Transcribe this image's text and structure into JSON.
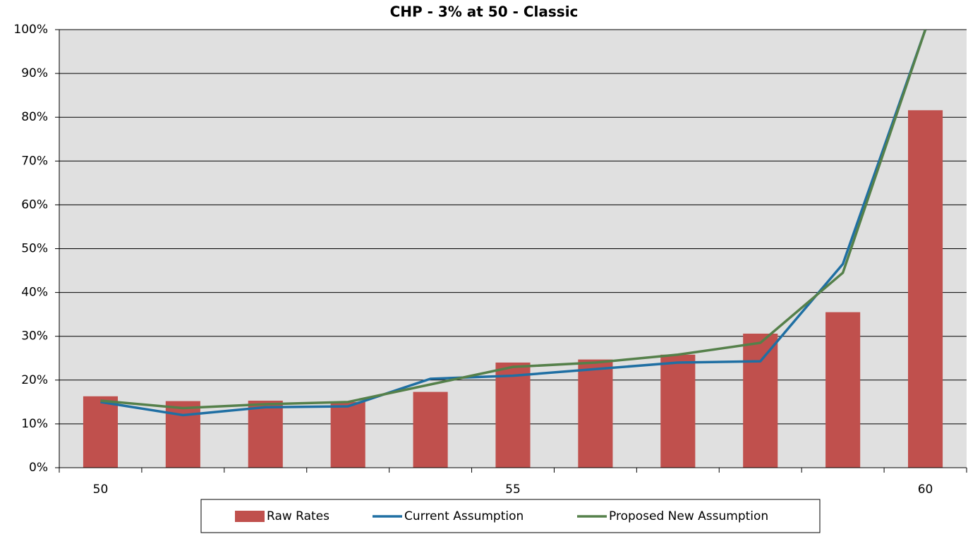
{
  "chart_data": {
    "type": "combo",
    "title": "CHP - 3% at 50 - Classic",
    "categories": [
      "50",
      null,
      null,
      null,
      null,
      "55",
      null,
      null,
      null,
      null,
      "60"
    ],
    "series": [
      {
        "name": "Raw Rates",
        "type": "bar",
        "color": "#c0504d",
        "values": [
          16.3,
          15.2,
          15.3,
          15.0,
          17.3,
          24.0,
          24.7,
          25.8,
          30.6,
          35.5,
          81.6
        ]
      },
      {
        "name": "Current Assumption",
        "type": "line",
        "color": "#1f6fa3",
        "values": [
          15.0,
          12.0,
          13.8,
          14.0,
          20.3,
          21.0,
          22.5,
          24.0,
          24.3,
          46.5,
          100
        ]
      },
      {
        "name": "Proposed New Assumption",
        "type": "line",
        "color": "#55804a",
        "values": [
          15.3,
          13.6,
          14.5,
          15.0,
          19.0,
          23.0,
          24.0,
          25.8,
          28.5,
          44.5,
          100
        ]
      }
    ],
    "ylim": [
      0,
      100
    ],
    "yticks": [
      {
        "value": 0,
        "label": "0%"
      },
      {
        "value": 10,
        "label": "10%"
      },
      {
        "value": 20,
        "label": "20%"
      },
      {
        "value": 30,
        "label": "30%"
      },
      {
        "value": 40,
        "label": "40%"
      },
      {
        "value": 50,
        "label": "50%"
      },
      {
        "value": 60,
        "label": "60%"
      },
      {
        "value": 70,
        "label": "70%"
      },
      {
        "value": 80,
        "label": "80%"
      },
      {
        "value": 90,
        "label": "90%"
      },
      {
        "value": 100,
        "label": "100%"
      }
    ],
    "grid": true,
    "legend": "bottom"
  }
}
